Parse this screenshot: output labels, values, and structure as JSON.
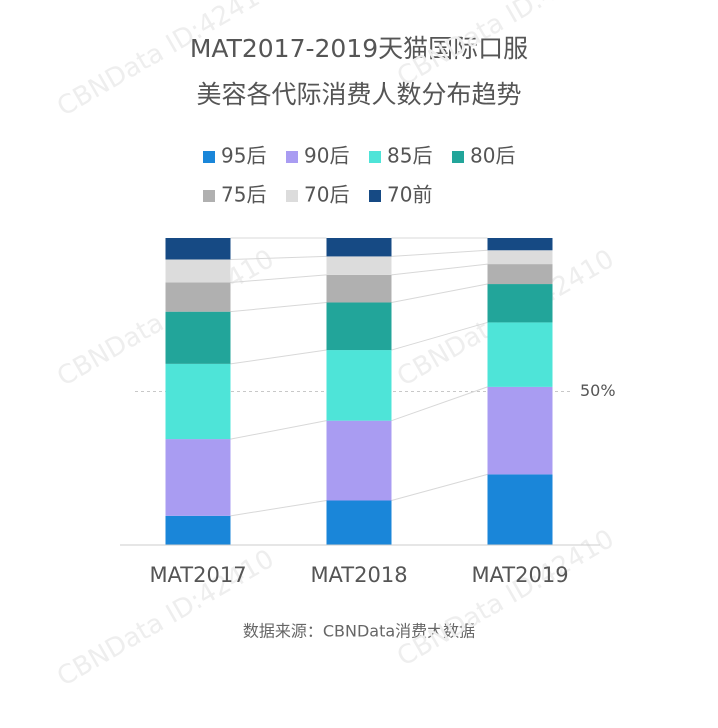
{
  "chart_data": {
    "type": "stacked_bar",
    "title": [
      "MAT2017-2019天猫国际口服",
      "美容各代际消费人数分布趋势"
    ],
    "categories": [
      "MAT2017",
      "MAT2018",
      "MAT2019"
    ],
    "series": [
      {
        "name": "95后",
        "color": "#1a86d9",
        "values": [
          9.5,
          14.5,
          23
        ]
      },
      {
        "name": "90后",
        "color": "#a99cf2",
        "values": [
          25,
          26,
          28.5
        ]
      },
      {
        "name": "85后",
        "color": "#4ee4d8",
        "values": [
          24.5,
          23,
          21
        ]
      },
      {
        "name": "80后",
        "color": "#22a59a",
        "values": [
          17,
          15.5,
          12.5
        ]
      },
      {
        "name": "75后",
        "color": "#b0b0b0",
        "values": [
          9.5,
          9,
          6.5
        ]
      },
      {
        "name": "70后",
        "color": "#dcdcdc",
        "values": [
          7.5,
          6,
          4.5
        ]
      },
      {
        "name": "70前",
        "color": "#164a84",
        "values": [
          7,
          6,
          4
        ]
      }
    ],
    "ylim": [
      0,
      100
    ],
    "yticks": [
      {
        "value": 50,
        "label": "50%"
      }
    ],
    "grid": true,
    "source": "数据来源：CBNData消费大数据",
    "watermark": "CBNData ID:42410"
  }
}
